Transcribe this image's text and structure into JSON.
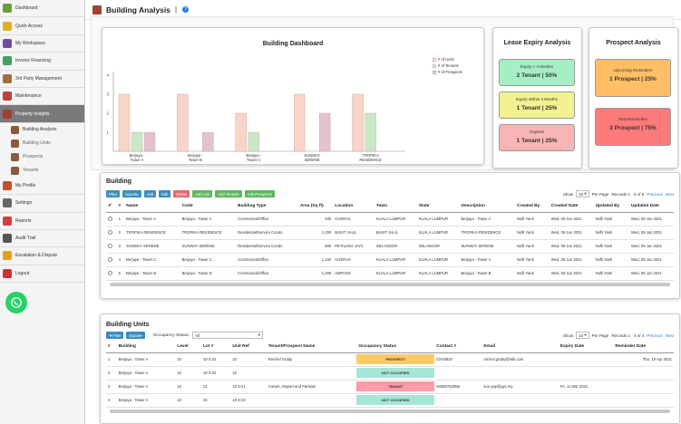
{
  "sidebar": {
    "items": [
      {
        "label": "Dashboard",
        "icon": "dashboard-icon",
        "color": "#6a9e3a"
      },
      {
        "label": "Quick Access",
        "icon": "star-icon",
        "color": "#e0b020"
      },
      {
        "label": "My Workspace",
        "icon": "books-icon",
        "color": "#7050a0"
      },
      {
        "label": "Invoice Financing",
        "icon": "invoice-icon",
        "color": "#40a060"
      },
      {
        "label": "3rd Party Management",
        "icon": "handshake-icon",
        "color": "#a07040"
      },
      {
        "label": "Maintenance",
        "icon": "tools-icon",
        "color": "#c04040"
      },
      {
        "label": "Property Insights",
        "icon": "building-icon",
        "color": "#a04030"
      }
    ],
    "sub_items": [
      {
        "label": "Building Analysis",
        "icon": "building-icon"
      },
      {
        "label": "Building Units",
        "icon": "units-icon"
      },
      {
        "label": "Prospects",
        "icon": "prospects-icon"
      },
      {
        "label": "Tenants",
        "icon": "tenants-icon"
      }
    ],
    "items2": [
      {
        "label": "My Profile",
        "icon": "profile-icon",
        "color": "#c05030"
      },
      {
        "label": "Settings",
        "icon": "gear-icon",
        "color": "#666666"
      },
      {
        "label": "Reports",
        "icon": "reports-icon",
        "color": "#d04040"
      },
      {
        "label": "Audit Trail",
        "icon": "audit-icon",
        "color": "#555555"
      },
      {
        "label": "Escalation & Dispute",
        "icon": "escalation-icon",
        "color": "#e0a020"
      },
      {
        "label": "Logout",
        "icon": "logout-icon",
        "color": "#d03030"
      }
    ]
  },
  "page": {
    "title": "Building Analysis",
    "separator": "|"
  },
  "dashboard": {
    "title": "Building Dashboard",
    "xlabel": "Building",
    "legend": [
      "# of Units",
      "# of Tenants",
      "# of Prospects"
    ]
  },
  "chart_data": {
    "type": "bar",
    "title": "Building Dashboard",
    "xlabel": "Building",
    "ylabel": "",
    "ylim": [
      0,
      4
    ],
    "yticks": [
      1,
      2,
      3,
      4
    ],
    "categories": [
      "Berjaya - Tower A",
      "Berjaya - Tower B",
      "Berjaya - Tower C",
      "SUNWAY SERENE",
      "TROPIKA RESIDENCE"
    ],
    "series": [
      {
        "name": "# of Units",
        "values": [
          3,
          3,
          2,
          3,
          3
        ],
        "color": "#f9d5c8"
      },
      {
        "name": "# of Tenants",
        "values": [
          1,
          0,
          1,
          0,
          2
        ],
        "color": "#c9e8c5"
      },
      {
        "name": "# of Prospects",
        "values": [
          1,
          1,
          0,
          2,
          0
        ],
        "color": "#e3c2cf"
      }
    ],
    "legend_position": "top-right"
  },
  "lease": {
    "title": "Lease Expiry Analysis",
    "boxes": [
      {
        "label": "Expiry < 3 Months",
        "value": "2 Tenant | 50%",
        "color": "#a6efc4"
      },
      {
        "label": "Expiry Within 3 Months",
        "value": "1 Tenant | 25%",
        "color": "#f2f290"
      },
      {
        "label": "Expired",
        "value": "1 Tenant | 25%",
        "color": "#f7b5b5"
      }
    ]
  },
  "prospect": {
    "title": "Prospect Analysis",
    "boxes": [
      {
        "label": "Upcoming Reminders",
        "value": "1 Prospect | 25%",
        "color": "#ffbf66"
      },
      {
        "label": "Past Reminders",
        "value": "3 Prospect | 75%",
        "color": "#ff7a7a"
      }
    ]
  },
  "building": {
    "section_title": "Building",
    "buttons": [
      "Filter",
      "Export",
      "Add",
      "Edit",
      "Delete",
      "Add Unit",
      "Add Tenants",
      "Add Prospects"
    ],
    "show_label": "Show",
    "show_value": "10",
    "per_page": "Per Page",
    "records": "Records 1 - 5 of 5",
    "prev": "Previous",
    "next": "Next",
    "columns": [
      "#",
      "Name",
      "Code",
      "Building Type",
      "Area (Sq ft)",
      "Location",
      "Town",
      "State",
      "Description",
      "Created By",
      "Created Date",
      "Updated By",
      "Updated Date"
    ],
    "rows": [
      [
        "1",
        "Berjaya - Tower A",
        "Berjaya - Tower A",
        "Commercial/Office",
        "930",
        "CHERAS",
        "KUALA LUMPUR",
        "KUALA LUMPUR",
        "Berjaya - Tower A",
        "Nofli Yanti",
        "Wed, 09 Jun 2021",
        "Nofli Yanti",
        "Wed, 09 Jun 2021"
      ],
      [
        "2",
        "TROPIKA RESIDENCE",
        "TROPIKA RESIDENCE",
        "Residential/Service Condo",
        "1,200",
        "BUKIT JALIL",
        "BUKIT JALIL",
        "KUALA LUMPUR",
        "TROPIKA RESIDENCE",
        "Nofli Yanti",
        "Wed, 09 Jun 2021",
        "Nofli Yanti",
        "Wed, 09 Jun 2021"
      ],
      [
        "3",
        "SUNWAY SERENE",
        "SUNWAY SERENE",
        "Residential/Service Condo",
        "800",
        "PETALING JAYA",
        "SELANGOR",
        "SELANGOR",
        "SUNWAY SERENE",
        "Nofli Yanti",
        "Wed, 09 Jun 2021",
        "Nofli Yanti",
        "Wed, 09 Jun 2021"
      ],
      [
        "4",
        "Berjaya - Tower C",
        "Berjaya - Tower C",
        "Commercial/Office",
        "1,100",
        "CHERAS",
        "KUALA LUMPUR",
        "KUALA LUMPUR",
        "Berjaya - Tower C",
        "Nofli Yanti",
        "Wed, 09 Jun 2021",
        "Nofli Yanti",
        "Wed, 09 Jun 2021"
      ],
      [
        "5",
        "Berjaya - Tower B",
        "Berjaya - Tower B",
        "Commercial/Office",
        "1,200",
        "AMPANG",
        "KUALA LUMPUR",
        "KUALA LUMPUR",
        "Berjaya - Tower B",
        "Nofli Yanti",
        "Wed, 09 Jun 2021",
        "Nofli Yanti",
        "Wed, 09 Jun 2021"
      ]
    ]
  },
  "units": {
    "section_title": "Building Units",
    "buttons": [
      "Filter",
      "Export"
    ],
    "occupancy_label": "Occupancy Status:",
    "occupancy_value": "All",
    "show_label": "Show",
    "show_value": "10",
    "per_page": "Per Page",
    "records": "Records 1 - 4 of 4",
    "prev": "Previous",
    "next": "Next",
    "columns": [
      "#",
      "Building",
      "Level",
      "Lot #",
      "Unit Ref",
      "Tenant/Prospect Name",
      "Occupancy Status",
      "Contact #",
      "Email",
      "Expiry Date",
      "Reminder Date"
    ],
    "rows": [
      [
        "1",
        "Berjaya - Tower A",
        "10",
        "10-3-22",
        "22",
        "Reichel Grady",
        "PROSPECT",
        "03-82832",
        "reichel.grady@tribi.com",
        "",
        "Thu, 19 Apr 2021"
      ],
      [
        "2",
        "Berjaya - Tower A",
        "10",
        "10-3-22",
        "22",
        "",
        "NOT OCCUPIED",
        "",
        "",
        "",
        ""
      ],
      [
        "3",
        "Berjaya - Tower A",
        "10",
        "21",
        "10-3-21",
        "Corwin, Mayert and Parisian",
        "TENANT",
        "60380752868",
        "sue.yap@gyc.my",
        "Fri, 11 Mar 2021",
        ""
      ],
      [
        "4",
        "Berjaya - Tower A",
        "10",
        "23",
        "10-3-23",
        "",
        "NOT OCCUPIED",
        "",
        "",
        "",
        ""
      ]
    ]
  }
}
